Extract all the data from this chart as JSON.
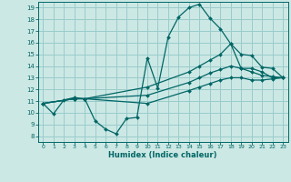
{
  "xlabel": "Humidex (Indice chaleur)",
  "bg_color": "#cce8e4",
  "grid_color": "#99cccc",
  "line_color": "#006666",
  "xlim": [
    -0.5,
    23.5
  ],
  "ylim": [
    7.5,
    19.5
  ],
  "xticks": [
    0,
    1,
    2,
    3,
    4,
    5,
    6,
    7,
    8,
    9,
    10,
    11,
    12,
    13,
    14,
    15,
    16,
    17,
    18,
    19,
    20,
    21,
    22,
    23
  ],
  "yticks": [
    8,
    9,
    10,
    11,
    12,
    13,
    14,
    15,
    16,
    17,
    18,
    19
  ],
  "lines": [
    {
      "x": [
        0,
        1,
        2,
        3,
        4,
        5,
        6,
        7,
        8,
        9,
        10,
        11,
        12,
        13,
        14,
        15,
        16,
        17,
        18,
        19,
        20,
        21,
        22,
        23
      ],
      "y": [
        10.8,
        9.9,
        11.1,
        11.3,
        11.2,
        9.3,
        8.6,
        8.2,
        9.5,
        9.6,
        14.7,
        12.1,
        16.5,
        18.2,
        19.0,
        19.3,
        18.1,
        17.2,
        15.9,
        13.8,
        13.8,
        13.5,
        13.0,
        13.0
      ]
    },
    {
      "x": [
        0,
        3,
        4,
        10,
        14,
        15,
        16,
        17,
        18,
        19,
        20,
        21,
        22,
        23
      ],
      "y": [
        10.8,
        11.2,
        11.2,
        12.2,
        13.5,
        14.0,
        14.5,
        15.0,
        15.9,
        15.0,
        14.9,
        13.9,
        13.8,
        13.0
      ]
    },
    {
      "x": [
        0,
        3,
        4,
        10,
        14,
        15,
        16,
        17,
        18,
        19,
        20,
        21,
        22,
        23
      ],
      "y": [
        10.8,
        11.2,
        11.2,
        11.5,
        12.6,
        13.0,
        13.4,
        13.7,
        14.0,
        13.8,
        13.5,
        13.2,
        13.1,
        13.0
      ]
    },
    {
      "x": [
        0,
        3,
        4,
        10,
        14,
        15,
        16,
        17,
        18,
        19,
        20,
        21,
        22,
        23
      ],
      "y": [
        10.8,
        11.2,
        11.2,
        10.8,
        11.9,
        12.2,
        12.5,
        12.8,
        13.0,
        13.0,
        12.8,
        12.8,
        12.9,
        13.0
      ]
    }
  ]
}
